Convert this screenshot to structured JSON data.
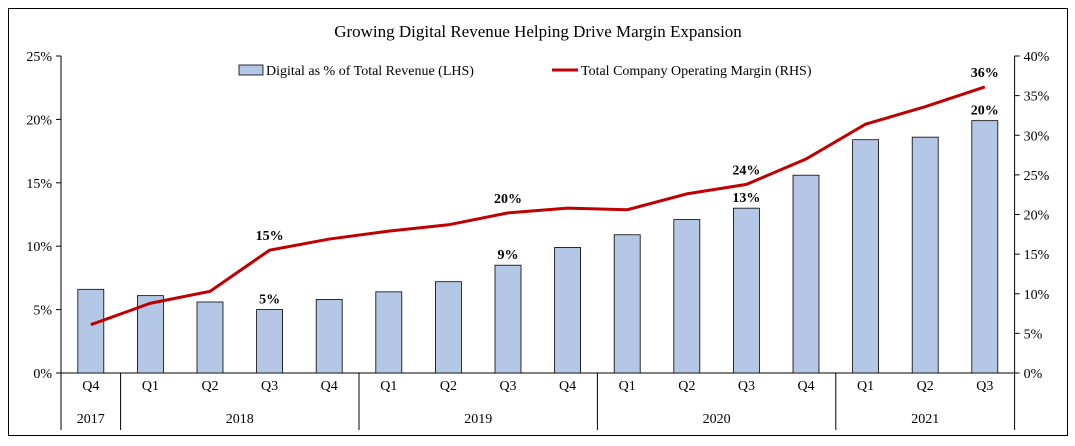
{
  "chart_data": {
    "type": "bar+line",
    "title": "Growing Digital Revenue Helping Drive Margin Expansion",
    "categories": [
      "Q4",
      "Q1",
      "Q2",
      "Q3",
      "Q4",
      "Q1",
      "Q2",
      "Q3",
      "Q4",
      "Q1",
      "Q2",
      "Q3",
      "Q4",
      "Q1",
      "Q2",
      "Q3"
    ],
    "years": [
      {
        "label": "2017",
        "span": 1
      },
      {
        "label": "2018",
        "span": 4
      },
      {
        "label": "2019",
        "span": 4
      },
      {
        "label": "2020",
        "span": 4
      },
      {
        "label": "2021",
        "span": 3
      }
    ],
    "series": [
      {
        "name": "Digital as % of Total Revenue (LHS)",
        "type": "bar",
        "axis": "left",
        "color": "#b4c7e7",
        "values": [
          6.6,
          6.1,
          5.6,
          5.0,
          5.8,
          6.4,
          7.2,
          8.5,
          9.9,
          10.9,
          12.1,
          13.0,
          15.6,
          18.4,
          18.6,
          19.9
        ],
        "labels": {
          "3": "5%",
          "7": "9%",
          "11": "13%",
          "15": "20%"
        }
      },
      {
        "name": "Total Company Operating Margin (RHS)",
        "type": "line",
        "axis": "right",
        "color": "#c00000",
        "values": [
          6.1,
          8.8,
          10.3,
          15.5,
          16.9,
          17.9,
          18.7,
          20.2,
          20.8,
          20.6,
          22.6,
          23.8,
          27.0,
          31.4,
          33.6,
          36.1
        ],
        "labels": {
          "3": "15%",
          "7": "20%",
          "11": "24%",
          "15": "36%"
        }
      }
    ],
    "left_axis": {
      "ylim": [
        0,
        25
      ],
      "ticks": [
        "0%",
        "5%",
        "10%",
        "15%",
        "20%",
        "25%"
      ]
    },
    "right_axis": {
      "ylim": [
        0,
        40
      ],
      "ticks": [
        "0%",
        "5%",
        "10%",
        "15%",
        "20%",
        "25%",
        "30%",
        "35%",
        "40%"
      ]
    },
    "legend": "top",
    "grid": false
  }
}
